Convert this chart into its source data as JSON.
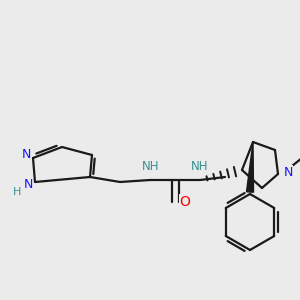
{
  "background_color": "#ebebeb",
  "bond_color": "#1a1a1a",
  "nitrogen_color": "#1414ff",
  "oxygen_color": "#ff0000",
  "hydrogen_color": "#3a9090",
  "figsize": [
    3.0,
    3.0
  ],
  "dpi": 100,
  "xlim": [
    0,
    300
  ],
  "ylim": [
    0,
    300
  ]
}
